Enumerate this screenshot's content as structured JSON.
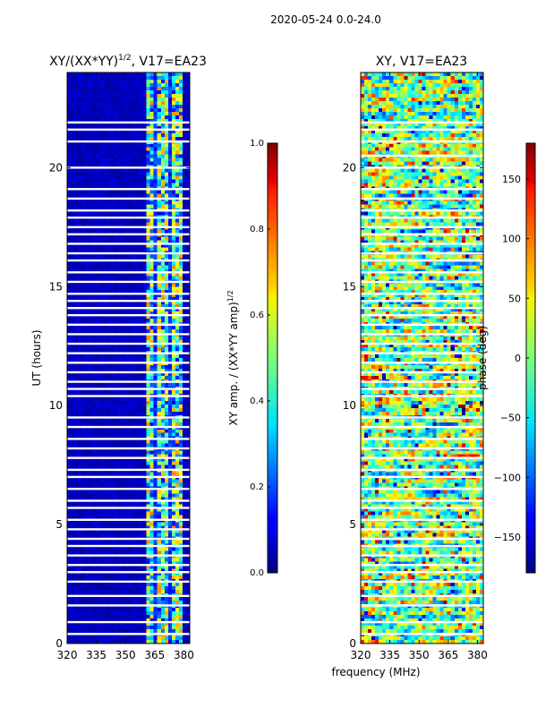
{
  "suptitle": "2020-05-24 0.0-24.0",
  "xlabel_shared": "frequency (MHz)",
  "chart_data": [
    {
      "type": "heatmap",
      "title": "XY/(XX*YY)",
      "title_superscript": "1/2",
      "title_suffix": ", V17=EA23",
      "xlabel": "",
      "ylabel": "UT (hours)",
      "xlim": [
        320,
        383
      ],
      "ylim": [
        0,
        24
      ],
      "xticks": [
        320,
        335,
        350,
        365,
        380
      ],
      "yticks": [
        0,
        5,
        10,
        15,
        20
      ],
      "colorbar": {
        "label": "XY amp. / (XX*YY amp)",
        "label_superscript": "1/2",
        "range": [
          0.0,
          1.0
        ],
        "ticks": [
          "0.0",
          "0.2",
          "0.4",
          "0.6",
          "0.8",
          "1.0"
        ],
        "colormap": "jet"
      },
      "bright_band_mhz": [
        361,
        380
      ],
      "gap_hours": [
        21.9,
        21.6,
        21.1,
        20.0,
        19.1,
        18.7,
        18.2,
        17.9,
        17.5,
        17.2,
        16.8,
        16.4,
        16.1,
        15.6,
        15.2,
        14.7,
        14.4,
        14.1,
        13.8,
        13.4,
        13.0,
        12.6,
        12.2,
        11.8,
        11.4,
        11.0,
        10.7,
        10.4,
        9.5,
        9.1,
        8.6,
        8.2,
        7.8,
        7.3,
        7.0,
        6.5,
        6.0,
        5.7,
        5.2,
        4.8,
        4.4,
        4.1,
        3.7,
        3.3,
        3.0,
        2.6,
        2.0,
        1.6,
        0.9,
        0.4
      ]
    },
    {
      "type": "heatmap",
      "title": "XY, V17=EA23",
      "xlabel": "frequency (MHz)",
      "ylabel": "",
      "xlim": [
        320,
        383
      ],
      "ylim": [
        0,
        24
      ],
      "xticks": [
        320,
        335,
        350,
        365,
        380
      ],
      "yticks": [
        0,
        5,
        10,
        15,
        20
      ],
      "colorbar": {
        "label": "phase (deg)",
        "range": [
          -180,
          180
        ],
        "ticks": [
          "150",
          "100",
          "50",
          "0",
          "−50",
          "−100",
          "−150"
        ],
        "tick_values": [
          150,
          100,
          50,
          0,
          -50,
          -100,
          -150
        ],
        "colormap": "jet"
      },
      "gap_hours": [
        21.9,
        21.6,
        21.1,
        20.5,
        20.0,
        19.1,
        18.7,
        18.2,
        17.9,
        17.5,
        17.2,
        16.8,
        16.4,
        16.1,
        15.6,
        15.2,
        14.7,
        14.4,
        14.1,
        13.8,
        13.4,
        13.0,
        12.6,
        12.2,
        11.8,
        11.4,
        11.0,
        10.7,
        10.4,
        9.5,
        9.1,
        8.6,
        8.2,
        7.8,
        7.3,
        7.0,
        6.5,
        6.0,
        5.7,
        5.2,
        4.8,
        4.4,
        4.1,
        3.7,
        3.3,
        3.0,
        2.6,
        2.0,
        1.6,
        0.9,
        0.4
      ]
    }
  ]
}
